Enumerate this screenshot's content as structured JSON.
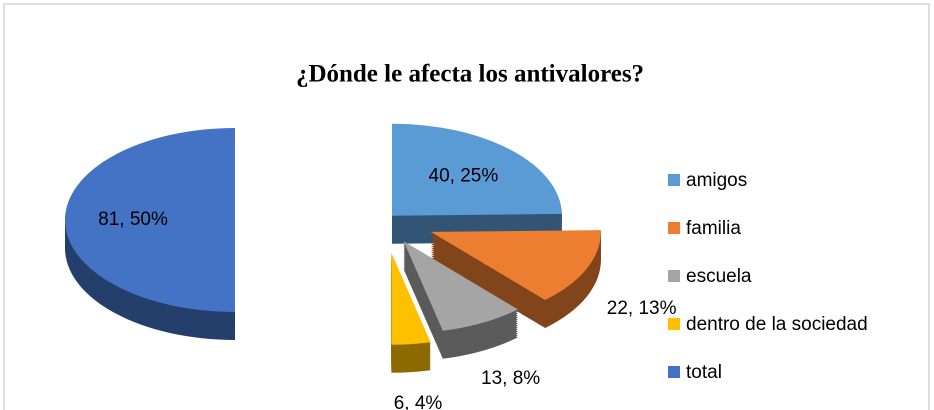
{
  "chart_data": {
    "type": "pie",
    "title": "¿Dónde le afecta los antivalores?",
    "categories": [
      "amigos",
      "familia",
      "escuela",
      "dentro de la sociedad",
      "total"
    ],
    "values": [
      40,
      22,
      13,
      6,
      81
    ],
    "value_labels": [
      "40, 25%",
      "22, 13%",
      "13, 8%",
      "6, 4%",
      "81, 50%"
    ],
    "colors": [
      "#5b9bd5",
      "#ed7d31",
      "#a5a5a5",
      "#ffc000",
      "#4472c4"
    ],
    "legend": "right"
  }
}
